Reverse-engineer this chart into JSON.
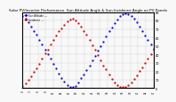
{
  "title": "Solar PV/Inverter Performance  Sun Altitude Angle & Sun Incidence Angle on PV Panels",
  "title_fontsize": 3.0,
  "background_color": "#f8f8f8",
  "grid_color": "#aaaaaa",
  "blue_color": "#0000cc",
  "red_color": "#cc0000",
  "marker_size": 1.2,
  "legend_blue": "Sun Altitude ---",
  "legend_red": "Incidence ....",
  "ylim": [
    0,
    90
  ],
  "xlim_min": 0,
  "xlim_max": 47,
  "ytick_values": [
    0,
    10,
    20,
    30,
    40,
    50,
    60,
    70,
    80,
    90
  ],
  "ytick_labels": [
    "0",
    "10",
    "20",
    "30",
    "40",
    "50",
    "60",
    "70",
    "80",
    "90"
  ],
  "blue_x": [
    0,
    1,
    2,
    3,
    4,
    5,
    6,
    7,
    8,
    9,
    10,
    11,
    12,
    13,
    14,
    15,
    16,
    17,
    18,
    19,
    20,
    21,
    22,
    23,
    24,
    25,
    26,
    27,
    28,
    29,
    30,
    31,
    32,
    33,
    34,
    35,
    36,
    37,
    38,
    39,
    40,
    41,
    42,
    43,
    44,
    45,
    46,
    47
  ],
  "blue_y": [
    85,
    82,
    78,
    73,
    68,
    63,
    57,
    52,
    46,
    40,
    35,
    29,
    23,
    17,
    12,
    8,
    4,
    2,
    1,
    3,
    7,
    12,
    16,
    21,
    27,
    33,
    38,
    44,
    50,
    55,
    61,
    67,
    72,
    77,
    81,
    85,
    87,
    88,
    87,
    85,
    82,
    78,
    73,
    67,
    62,
    57,
    52,
    47
  ],
  "red_x": [
    0,
    1,
    2,
    3,
    4,
    5,
    6,
    7,
    8,
    9,
    10,
    11,
    12,
    13,
    14,
    15,
    16,
    17,
    18,
    19,
    20,
    21,
    22,
    23,
    24,
    25,
    26,
    27,
    28,
    29,
    30,
    31,
    32,
    33,
    34,
    35,
    36,
    37,
    38,
    39,
    40,
    41,
    42,
    43,
    44,
    45,
    46,
    47
  ],
  "red_y": [
    3,
    6,
    10,
    14,
    19,
    24,
    29,
    35,
    41,
    46,
    52,
    57,
    62,
    67,
    71,
    75,
    79,
    81,
    82,
    80,
    77,
    73,
    68,
    63,
    57,
    51,
    45,
    39,
    33,
    27,
    22,
    16,
    11,
    7,
    4,
    2,
    1,
    2,
    4,
    7,
    11,
    15,
    20,
    25,
    30,
    35,
    40,
    46
  ],
  "num_xticks": 18,
  "xtick_fontsize": 2.0,
  "ytick_fontsize": 2.5
}
